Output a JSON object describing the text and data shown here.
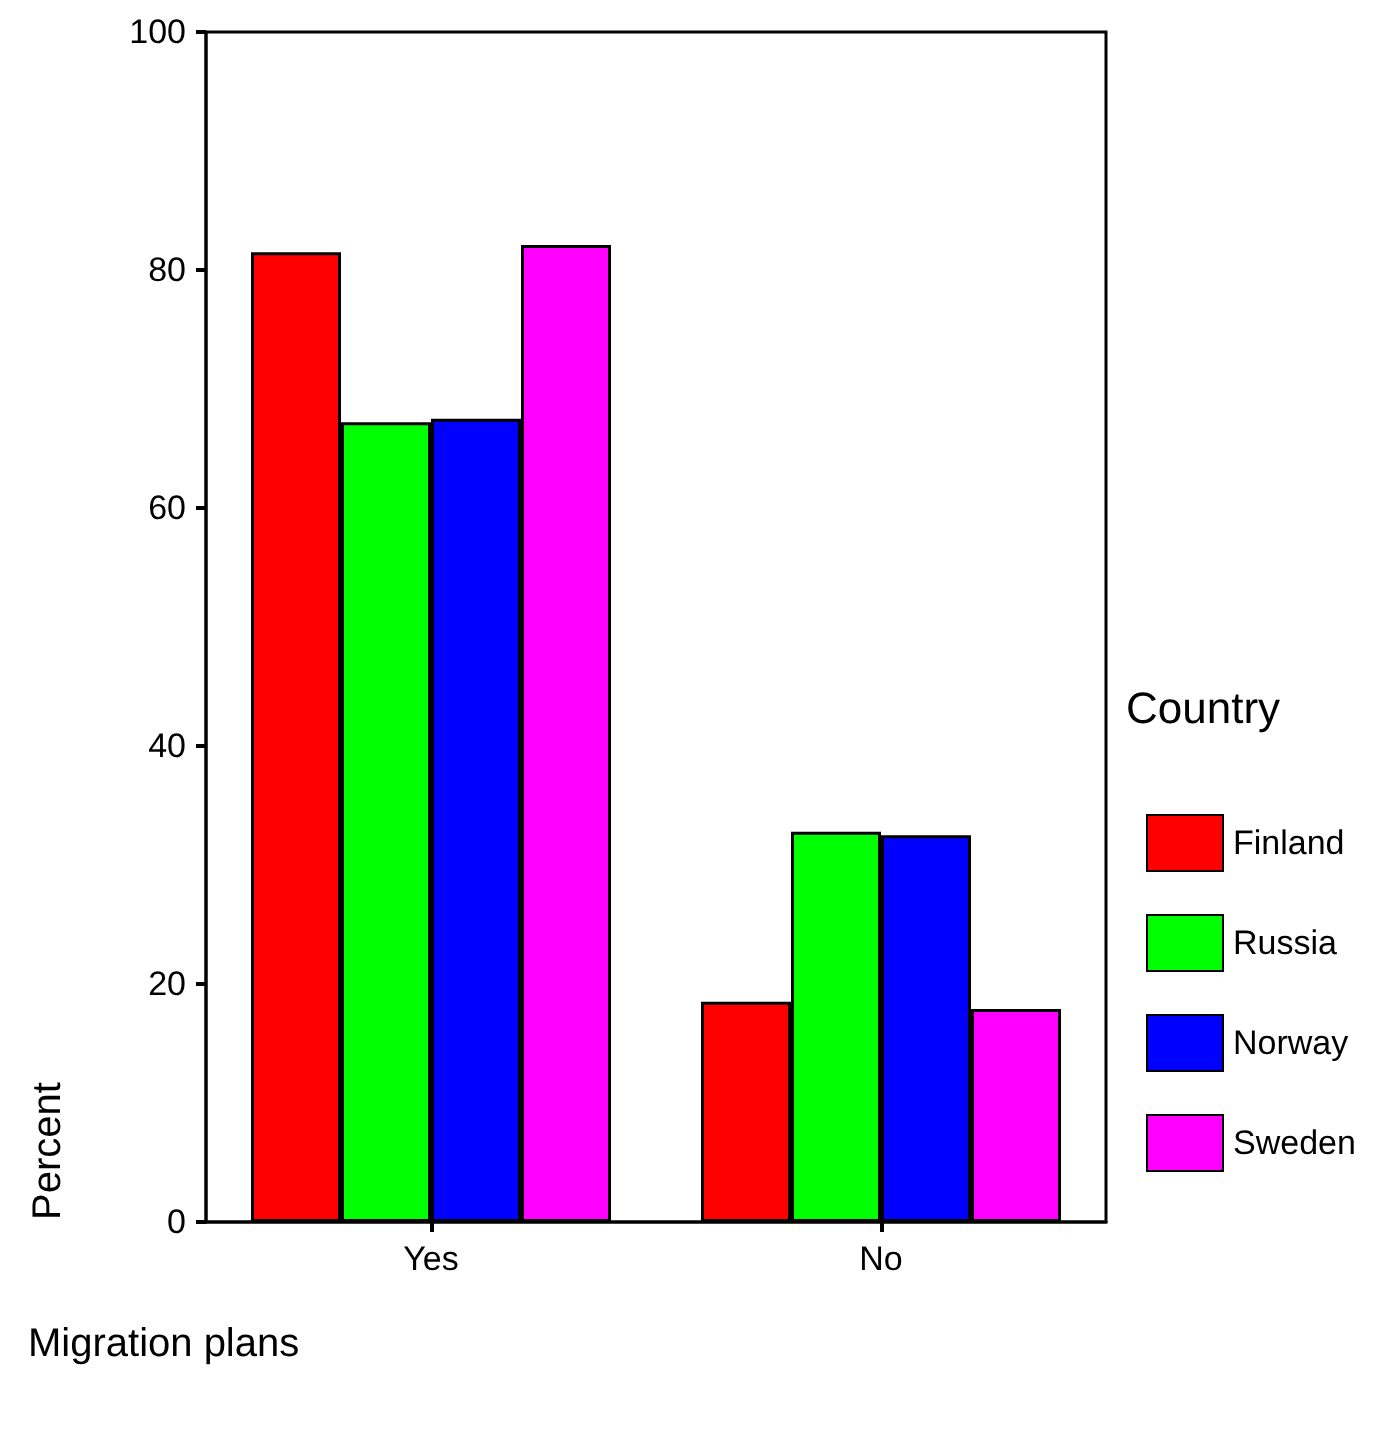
{
  "chart_data": {
    "type": "bar",
    "xlabel": "Migration plans",
    "ylabel": "Percent",
    "legend_title": "Country",
    "categories": [
      "Yes",
      "No"
    ],
    "series": [
      {
        "name": "Finland",
        "color": "#ff0000",
        "values": [
          81.5,
          18.5
        ]
      },
      {
        "name": "Russia",
        "color": "#00ff00",
        "values": [
          67.2,
          32.8
        ]
      },
      {
        "name": "Norway",
        "color": "#0000ff",
        "values": [
          67.5,
          32.5
        ]
      },
      {
        "name": "Sweden",
        "color": "#ff00ff",
        "values": [
          82.1,
          17.9
        ]
      }
    ],
    "ylim": [
      0,
      100
    ],
    "yticks": [
      0,
      20,
      40,
      60,
      80,
      100
    ],
    "grid": false,
    "legend": "right"
  }
}
